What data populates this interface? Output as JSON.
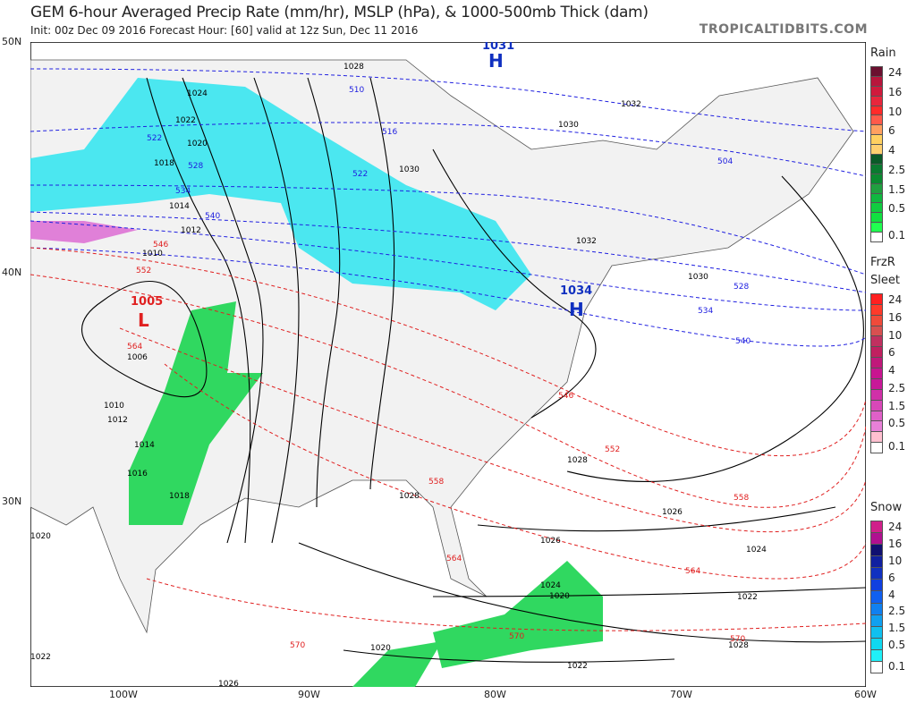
{
  "header": {
    "title": "GEM 6-hour Averaged Precip Rate (mm/hr), MSLP (hPa), & 1000-500mb Thick (dam)",
    "subtitle": "Init: 00z Dec 09 2016   Forecast Hour: [60]   valid at 12z Sun, Dec 11 2016",
    "brand": "TROPICALTIDBITS.COM"
  },
  "axes": {
    "lat": [
      "50N",
      "40N",
      "30N"
    ],
    "lon": [
      "100W",
      "90W",
      "80W",
      "70W",
      "60W"
    ]
  },
  "pressure_centers": [
    {
      "type": "H",
      "value": "1031"
    },
    {
      "type": "H",
      "value": "1034"
    },
    {
      "type": "L",
      "value": "1005"
    }
  ],
  "isobars": [
    "1028",
    "1024",
    "1022",
    "1020",
    "1018",
    "1014",
    "1012",
    "1010",
    "1006",
    "1010",
    "1012",
    "1014",
    "1016",
    "1018",
    "1020",
    "1022",
    "1026",
    "1028",
    "1030",
    "1030",
    "1032",
    "1032",
    "1030",
    "1028",
    "1026",
    "1026",
    "1024",
    "1024",
    "1022",
    "1020",
    "1020",
    "1022",
    "1028"
  ],
  "thickness_blue": [
    "510",
    "516",
    "522",
    "522",
    "528",
    "534",
    "540",
    "528",
    "534",
    "540",
    "504"
  ],
  "thickness_red": [
    "546",
    "552",
    "564",
    "546",
    "552",
    "558",
    "558",
    "564",
    "564",
    "570",
    "570",
    "570"
  ],
  "legend": {
    "rain": {
      "title": "Rain",
      "labels": [
        "24",
        "16",
        "10",
        "6",
        "4",
        "2.5",
        "1.5",
        "0.5",
        "0.1"
      ],
      "colors": [
        "#6b1030",
        "#b8163c",
        "#d01a3c",
        "#e8263c",
        "#ff2a2a",
        "#ff5a4a",
        "#ffa060",
        "#ffd060",
        "#ffd070",
        "#0a5a28",
        "#0a7a30",
        "#0a8a30",
        "#20a040",
        "#10b840",
        "#10cc40",
        "#10e040",
        "#20ff50",
        "#ffffff"
      ]
    },
    "frzr": {
      "title_top": "FrzR",
      "title": "Sleet",
      "labels": [
        "24",
        "16",
        "10",
        "6",
        "4",
        "2.5",
        "1.5",
        "0.5",
        "0.1"
      ],
      "colors": [
        "#ff2020",
        "#ff3a2a",
        "#f04a3a",
        "#d85050",
        "#c03060",
        "#c02060",
        "#c0187a",
        "#c81490",
        "#c81898",
        "#d030a8",
        "#d848b8",
        "#e060c8",
        "#e880d8",
        "#ffc0d0",
        "#ffffff"
      ]
    },
    "snow": {
      "title": "Snow",
      "labels": [
        "24",
        "16",
        "10",
        "6",
        "4",
        "2.5",
        "1.5",
        "0.5",
        "0.1"
      ],
      "colors": [
        "#d0208a",
        "#b01090",
        "#101070",
        "#1020a0",
        "#1030c0",
        "#1040e0",
        "#1060f0",
        "#1080f0",
        "#10a0f0",
        "#10c0f0",
        "#10d8f0",
        "#20f0f8",
        "#ffffff"
      ]
    }
  }
}
